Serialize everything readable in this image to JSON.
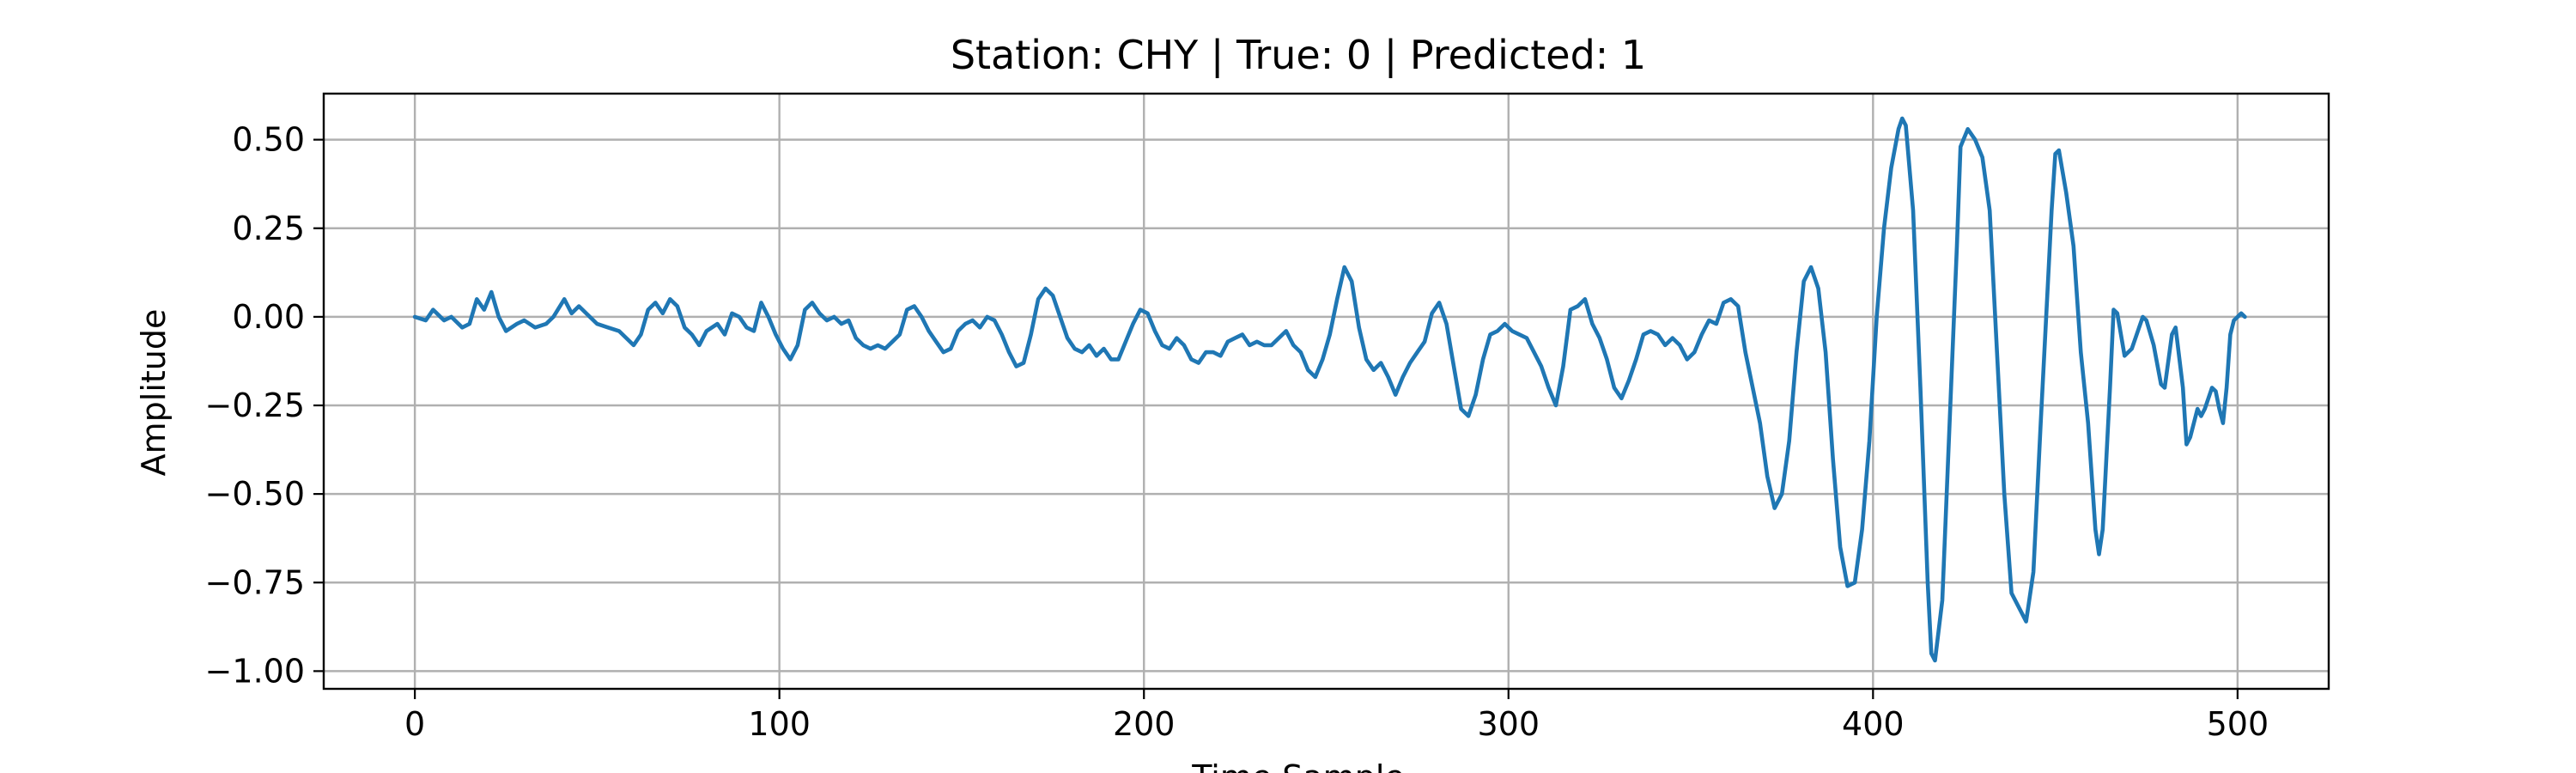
{
  "chart_data": {
    "type": "line",
    "title": "Station: CHY | True: 0 | Predicted: 1",
    "xlabel": "Time Sample",
    "ylabel": "Amplitude",
    "xlim": [
      -25,
      525
    ],
    "ylim": [
      -1.05,
      0.63
    ],
    "xticks": [
      0,
      100,
      200,
      300,
      400,
      500
    ],
    "xtick_labels": [
      "0",
      "100",
      "200",
      "300",
      "400",
      "500"
    ],
    "yticks": [
      0.5,
      0.25,
      0.0,
      -0.25,
      -0.5,
      -0.75,
      -1.0
    ],
    "ytick_labels": [
      "0.50",
      "0.25",
      "0.00",
      "−0.25",
      "−0.50",
      "−0.75",
      "−1.00"
    ],
    "grid": true,
    "series": [
      {
        "color": "#1f77b4",
        "points": [
          [
            0,
            0.0
          ],
          [
            3,
            -0.01
          ],
          [
            5,
            0.02
          ],
          [
            8,
            -0.01
          ],
          [
            10,
            0.0
          ],
          [
            13,
            -0.03
          ],
          [
            15,
            -0.02
          ],
          [
            17,
            0.05
          ],
          [
            19,
            0.02
          ],
          [
            21,
            0.07
          ],
          [
            23,
            0.0
          ],
          [
            25,
            -0.04
          ],
          [
            28,
            -0.02
          ],
          [
            30,
            -0.01
          ],
          [
            33,
            -0.03
          ],
          [
            36,
            -0.02
          ],
          [
            38,
            0.0
          ],
          [
            41,
            0.05
          ],
          [
            43,
            0.01
          ],
          [
            45,
            0.03
          ],
          [
            48,
            0.0
          ],
          [
            50,
            -0.02
          ],
          [
            53,
            -0.03
          ],
          [
            56,
            -0.04
          ],
          [
            58,
            -0.06
          ],
          [
            60,
            -0.08
          ],
          [
            62,
            -0.05
          ],
          [
            64,
            0.02
          ],
          [
            66,
            0.04
          ],
          [
            68,
            0.01
          ],
          [
            70,
            0.05
          ],
          [
            72,
            0.03
          ],
          [
            74,
            -0.03
          ],
          [
            76,
            -0.05
          ],
          [
            78,
            -0.08
          ],
          [
            80,
            -0.04
          ],
          [
            83,
            -0.02
          ],
          [
            85,
            -0.05
          ],
          [
            87,
            0.01
          ],
          [
            89,
            0.0
          ],
          [
            91,
            -0.03
          ],
          [
            93,
            -0.04
          ],
          [
            95,
            0.04
          ],
          [
            97,
            0.0
          ],
          [
            99,
            -0.05
          ],
          [
            101,
            -0.09
          ],
          [
            103,
            -0.12
          ],
          [
            105,
            -0.08
          ],
          [
            107,
            0.02
          ],
          [
            109,
            0.04
          ],
          [
            111,
            0.01
          ],
          [
            113,
            -0.01
          ],
          [
            115,
            0.0
          ],
          [
            117,
            -0.02
          ],
          [
            119,
            -0.01
          ],
          [
            121,
            -0.06
          ],
          [
            123,
            -0.08
          ],
          [
            125,
            -0.09
          ],
          [
            127,
            -0.08
          ],
          [
            129,
            -0.09
          ],
          [
            131,
            -0.07
          ],
          [
            133,
            -0.05
          ],
          [
            135,
            0.02
          ],
          [
            137,
            0.03
          ],
          [
            139,
            0.0
          ],
          [
            141,
            -0.04
          ],
          [
            143,
            -0.07
          ],
          [
            145,
            -0.1
          ],
          [
            147,
            -0.09
          ],
          [
            149,
            -0.04
          ],
          [
            151,
            -0.02
          ],
          [
            153,
            -0.01
          ],
          [
            155,
            -0.03
          ],
          [
            157,
            0.0
          ],
          [
            159,
            -0.01
          ],
          [
            161,
            -0.05
          ],
          [
            163,
            -0.1
          ],
          [
            165,
            -0.14
          ],
          [
            167,
            -0.13
          ],
          [
            169,
            -0.05
          ],
          [
            171,
            0.05
          ],
          [
            173,
            0.08
          ],
          [
            175,
            0.06
          ],
          [
            177,
            0.0
          ],
          [
            179,
            -0.06
          ],
          [
            181,
            -0.09
          ],
          [
            183,
            -0.1
          ],
          [
            185,
            -0.08
          ],
          [
            187,
            -0.11
          ],
          [
            189,
            -0.09
          ],
          [
            191,
            -0.12
          ],
          [
            193,
            -0.12
          ],
          [
            195,
            -0.07
          ],
          [
            197,
            -0.02
          ],
          [
            199,
            0.02
          ],
          [
            201,
            0.01
          ],
          [
            203,
            -0.04
          ],
          [
            205,
            -0.08
          ],
          [
            207,
            -0.09
          ],
          [
            209,
            -0.06
          ],
          [
            211,
            -0.08
          ],
          [
            213,
            -0.12
          ],
          [
            215,
            -0.13
          ],
          [
            217,
            -0.1
          ],
          [
            219,
            -0.1
          ],
          [
            221,
            -0.11
          ],
          [
            223,
            -0.07
          ],
          [
            225,
            -0.06
          ],
          [
            227,
            -0.05
          ],
          [
            229,
            -0.08
          ],
          [
            231,
            -0.07
          ],
          [
            233,
            -0.08
          ],
          [
            235,
            -0.08
          ],
          [
            237,
            -0.06
          ],
          [
            239,
            -0.04
          ],
          [
            241,
            -0.08
          ],
          [
            243,
            -0.1
          ],
          [
            245,
            -0.15
          ],
          [
            247,
            -0.17
          ],
          [
            249,
            -0.12
          ],
          [
            251,
            -0.05
          ],
          [
            253,
            0.05
          ],
          [
            255,
            0.14
          ],
          [
            257,
            0.1
          ],
          [
            259,
            -0.03
          ],
          [
            261,
            -0.12
          ],
          [
            263,
            -0.15
          ],
          [
            265,
            -0.13
          ],
          [
            267,
            -0.17
          ],
          [
            269,
            -0.22
          ],
          [
            271,
            -0.17
          ],
          [
            273,
            -0.13
          ],
          [
            275,
            -0.1
          ],
          [
            277,
            -0.07
          ],
          [
            279,
            0.01
          ],
          [
            281,
            0.04
          ],
          [
            283,
            -0.02
          ],
          [
            285,
            -0.14
          ],
          [
            287,
            -0.26
          ],
          [
            289,
            -0.28
          ],
          [
            291,
            -0.22
          ],
          [
            293,
            -0.12
          ],
          [
            295,
            -0.05
          ],
          [
            297,
            -0.04
          ],
          [
            299,
            -0.02
          ],
          [
            301,
            -0.04
          ],
          [
            303,
            -0.05
          ],
          [
            305,
            -0.06
          ],
          [
            307,
            -0.1
          ],
          [
            309,
            -0.14
          ],
          [
            311,
            -0.2
          ],
          [
            313,
            -0.25
          ],
          [
            315,
            -0.14
          ],
          [
            317,
            0.02
          ],
          [
            319,
            0.03
          ],
          [
            321,
            0.05
          ],
          [
            323,
            -0.02
          ],
          [
            325,
            -0.06
          ],
          [
            327,
            -0.12
          ],
          [
            329,
            -0.2
          ],
          [
            331,
            -0.23
          ],
          [
            333,
            -0.18
          ],
          [
            335,
            -0.12
          ],
          [
            337,
            -0.05
          ],
          [
            339,
            -0.04
          ],
          [
            341,
            -0.05
          ],
          [
            343,
            -0.08
          ],
          [
            345,
            -0.06
          ],
          [
            347,
            -0.08
          ],
          [
            349,
            -0.12
          ],
          [
            351,
            -0.1
          ],
          [
            353,
            -0.05
          ],
          [
            355,
            -0.01
          ],
          [
            357,
            -0.02
          ],
          [
            359,
            0.04
          ],
          [
            361,
            0.05
          ],
          [
            363,
            0.03
          ],
          [
            365,
            -0.1
          ],
          [
            367,
            -0.2
          ],
          [
            369,
            -0.3
          ],
          [
            371,
            -0.45
          ],
          [
            373,
            -0.54
          ],
          [
            375,
            -0.5
          ],
          [
            377,
            -0.35
          ],
          [
            379,
            -0.1
          ],
          [
            381,
            0.1
          ],
          [
            383,
            0.14
          ],
          [
            385,
            0.08
          ],
          [
            387,
            -0.1
          ],
          [
            389,
            -0.4
          ],
          [
            391,
            -0.65
          ],
          [
            393,
            -0.76
          ],
          [
            395,
            -0.75
          ],
          [
            397,
            -0.6
          ],
          [
            399,
            -0.35
          ],
          [
            401,
            0.0
          ],
          [
            403,
            0.25
          ],
          [
            405,
            0.42
          ],
          [
            407,
            0.53
          ],
          [
            408,
            0.56
          ],
          [
            409,
            0.54
          ],
          [
            411,
            0.3
          ],
          [
            413,
            -0.2
          ],
          [
            415,
            -0.75
          ],
          [
            416,
            -0.95
          ],
          [
            417,
            -0.97
          ],
          [
            419,
            -0.8
          ],
          [
            421,
            -0.3
          ],
          [
            423,
            0.2
          ],
          [
            424,
            0.48
          ],
          [
            426,
            0.53
          ],
          [
            428,
            0.5
          ],
          [
            430,
            0.45
          ],
          [
            432,
            0.3
          ],
          [
            434,
            -0.1
          ],
          [
            436,
            -0.5
          ],
          [
            438,
            -0.78
          ],
          [
            440,
            -0.82
          ],
          [
            442,
            -0.86
          ],
          [
            444,
            -0.72
          ],
          [
            446,
            -0.3
          ],
          [
            448,
            0.1
          ],
          [
            449,
            0.3
          ],
          [
            450,
            0.46
          ],
          [
            451,
            0.47
          ],
          [
            453,
            0.35
          ],
          [
            455,
            0.2
          ],
          [
            457,
            -0.1
          ],
          [
            459,
            -0.3
          ],
          [
            461,
            -0.6
          ],
          [
            462,
            -0.67
          ],
          [
            463,
            -0.6
          ],
          [
            465,
            -0.2
          ],
          [
            466,
            0.02
          ],
          [
            467,
            0.01
          ],
          [
            469,
            -0.11
          ],
          [
            471,
            -0.09
          ],
          [
            473,
            -0.03
          ],
          [
            474,
            0.0
          ],
          [
            475,
            -0.01
          ],
          [
            477,
            -0.08
          ],
          [
            479,
            -0.19
          ],
          [
            480,
            -0.2
          ],
          [
            482,
            -0.05
          ],
          [
            483,
            -0.03
          ],
          [
            485,
            -0.2
          ],
          [
            486,
            -0.36
          ],
          [
            487,
            -0.34
          ],
          [
            489,
            -0.26
          ],
          [
            490,
            -0.28
          ],
          [
            491,
            -0.26
          ],
          [
            493,
            -0.2
          ],
          [
            494,
            -0.21
          ],
          [
            495,
            -0.26
          ],
          [
            496,
            -0.3
          ],
          [
            497,
            -0.2
          ],
          [
            498,
            -0.05
          ],
          [
            499,
            -0.01
          ],
          [
            500,
            0.0
          ],
          [
            501,
            0.01
          ],
          [
            502,
            0.0
          ]
        ]
      }
    ]
  }
}
